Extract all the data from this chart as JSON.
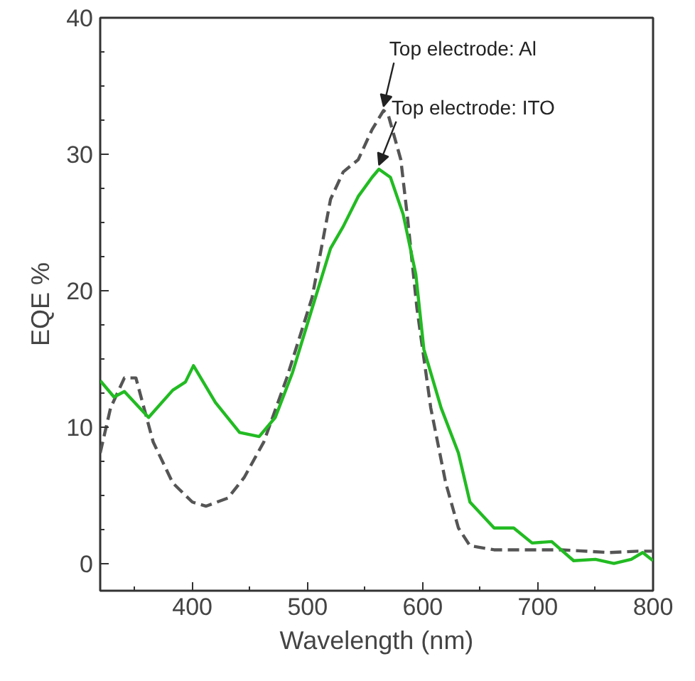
{
  "chart_data": {
    "type": "line",
    "xlabel": "Wavelength (nm)",
    "ylabel": "EQE %",
    "xlim": [
      320,
      800
    ],
    "ylim": [
      -2,
      40
    ],
    "xticks": [
      400,
      500,
      600,
      700,
      800
    ],
    "yticks": [
      0,
      10,
      20,
      30,
      40
    ],
    "grid": false,
    "series": [
      {
        "color": "#555555",
        "line_style": "dashed",
        "x": [
          320,
          329,
          341,
          351,
          366,
          383,
          400,
          412,
          431,
          445,
          462,
          482,
          504,
          520,
          531,
          544,
          556,
          566,
          570,
          581,
          587,
          595,
          607,
          620,
          631,
          641,
          662,
          720,
          762,
          787,
          800
        ],
        "values": [
          8.1,
          11.4,
          13.6,
          13.6,
          8.9,
          5.9,
          4.5,
          4.2,
          4.8,
          6.3,
          8.9,
          13.6,
          19.5,
          26.7,
          28.7,
          29.6,
          31.8,
          33.2,
          32.9,
          29.6,
          25.2,
          18.7,
          11.4,
          5.9,
          2.6,
          1.3,
          1.0,
          1.0,
          0.8,
          0.9,
          0.9
        ]
      },
      {
        "color": "#22bb22",
        "line_style": "solid",
        "x": [
          320,
          332,
          341,
          362,
          383,
          394,
          401,
          420,
          441,
          458,
          472,
          487,
          504,
          520,
          531,
          544,
          556,
          562,
          572,
          583,
          594,
          601,
          616,
          631,
          641,
          662,
          679,
          695,
          712,
          731,
          750,
          766,
          781,
          791,
          800
        ],
        "values": [
          13.4,
          12.2,
          12.6,
          10.7,
          12.7,
          13.3,
          14.5,
          11.8,
          9.6,
          9.3,
          10.7,
          14.0,
          18.7,
          23.1,
          24.7,
          26.9,
          28.3,
          28.9,
          28.3,
          25.6,
          21.2,
          15.7,
          11.4,
          8.1,
          4.5,
          2.6,
          2.6,
          1.5,
          1.6,
          0.2,
          0.3,
          0.0,
          0.3,
          0.8,
          0.2
        ]
      }
    ],
    "annotations": [
      {
        "text": "Top electrode: Al",
        "x": 566,
        "y": 33.2
      },
      {
        "text": "Top electrode: ITO",
        "x": 562,
        "y": 28.9
      }
    ]
  }
}
